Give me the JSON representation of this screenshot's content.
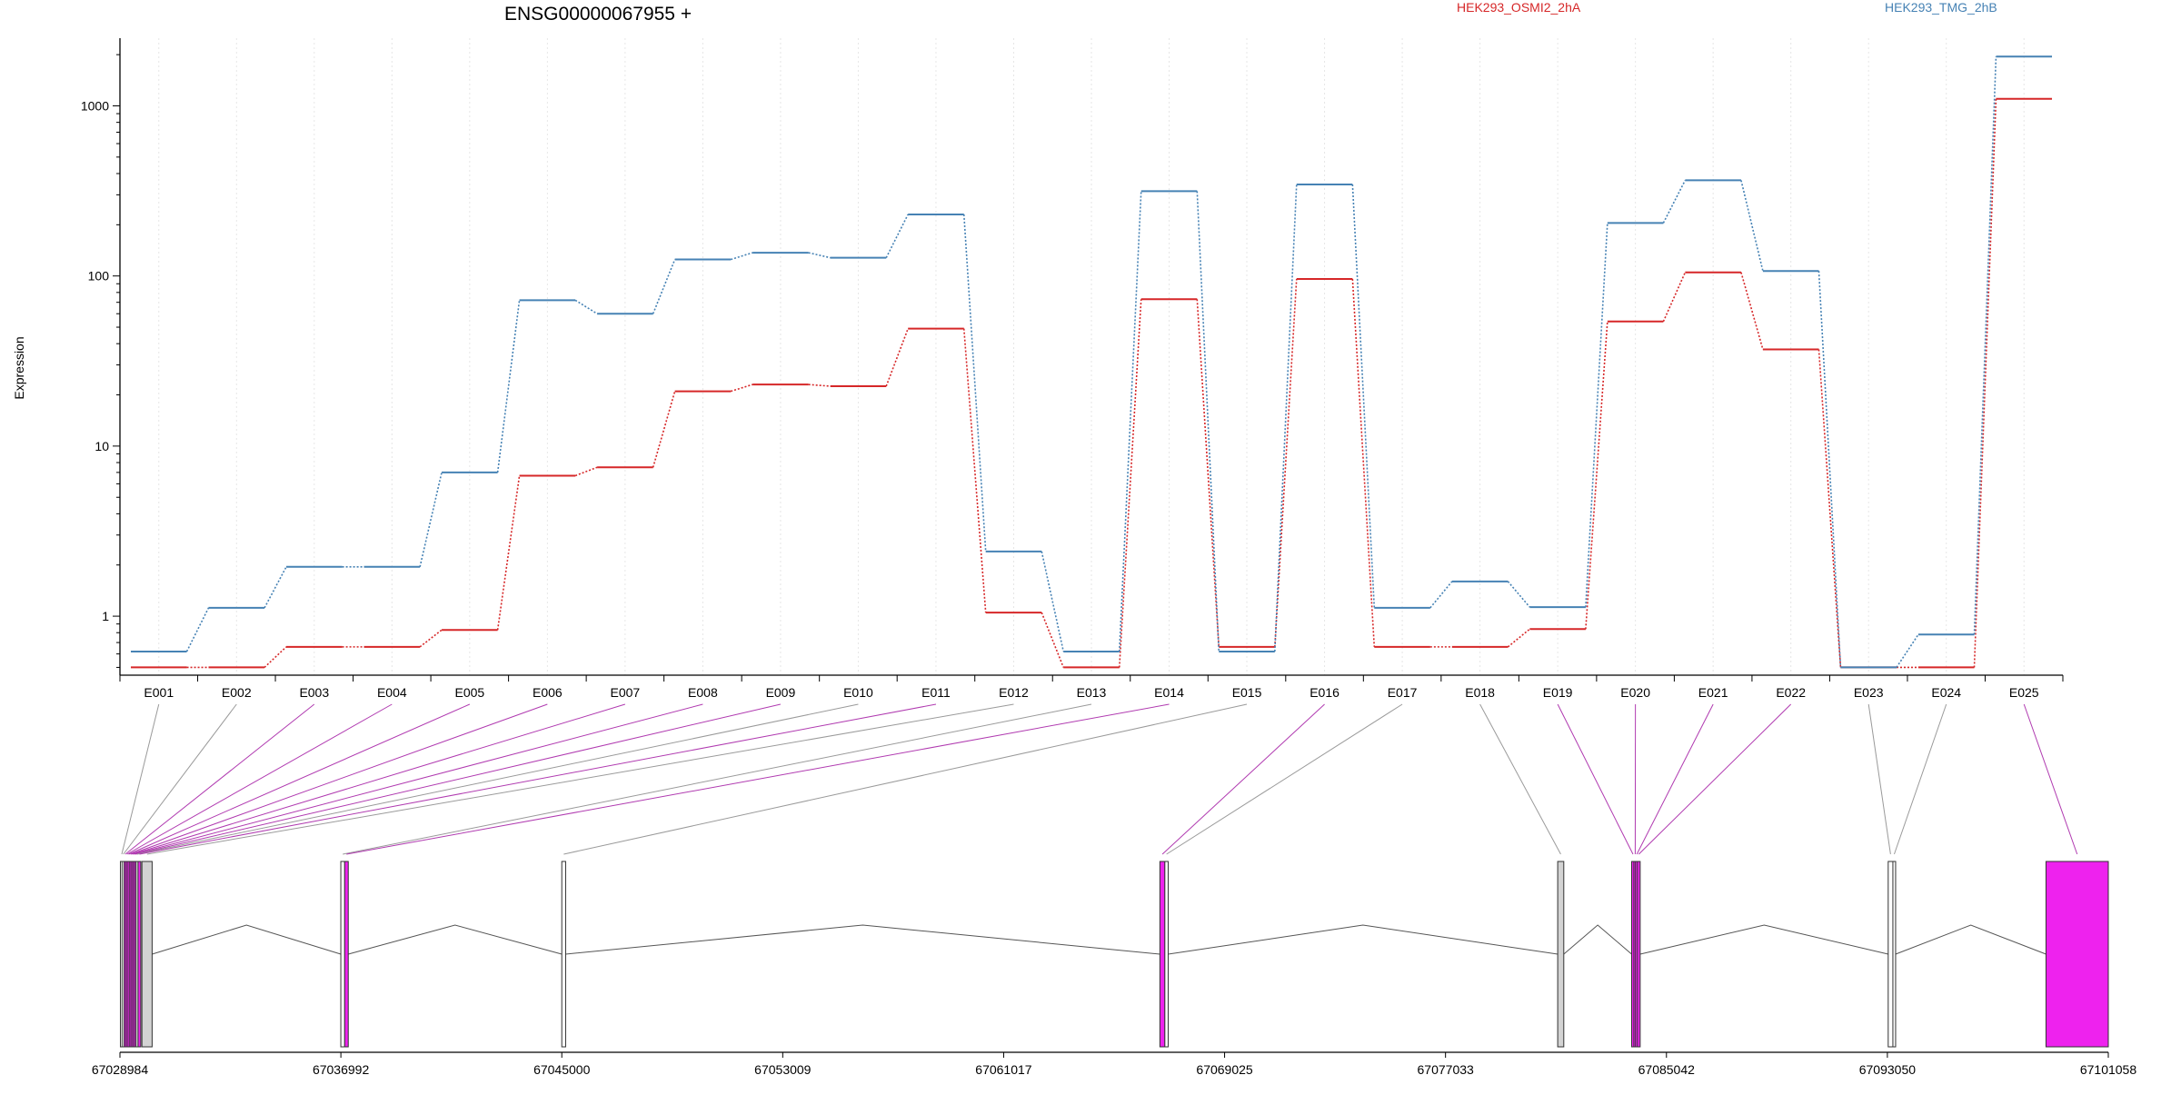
{
  "chart_data": {
    "type": "line",
    "title": "ENSG00000067955 +",
    "xlabel": "",
    "ylabel": "Expression",
    "y_scale": "log",
    "ylim": [
      0.45,
      2500
    ],
    "y_ticks": [
      "1",
      "10",
      "100",
      "1000"
    ],
    "categories": [
      "E001",
      "E002",
      "E003",
      "E004",
      "E005",
      "E006",
      "E007",
      "E008",
      "E009",
      "E010",
      "E011",
      "E012",
      "E013",
      "E014",
      "E015",
      "E016",
      "E017",
      "E018",
      "E019",
      "E020",
      "E021",
      "E022",
      "E023",
      "E024",
      "E025"
    ],
    "series": [
      {
        "name": "HEK293_OSMI2_2hA",
        "color": "#d62728",
        "values": [
          0.5,
          0.5,
          0.66,
          0.66,
          0.83,
          6.7,
          7.5,
          21,
          23,
          22.5,
          49,
          1.05,
          0.5,
          73,
          0.66,
          96,
          0.66,
          0.66,
          0.84,
          54,
          105,
          37,
          0.5,
          0.5,
          1100
        ]
      },
      {
        "name": "HEK293_TMG_2hB",
        "color": "#4682b4",
        "values": [
          0.62,
          1.12,
          1.95,
          1.95,
          7.0,
          72,
          60,
          125,
          137,
          128,
          230,
          2.4,
          0.62,
          315,
          0.62,
          345,
          1.12,
          1.6,
          1.13,
          205,
          365,
          107,
          0.5,
          0.78,
          1950
        ]
      }
    ],
    "gene_axis": {
      "tick_labels": [
        "67028984",
        "67036992",
        "67045000",
        "67053009",
        "67061017",
        "67069025",
        "67077033",
        "67085042",
        "67093050",
        "67101058"
      ],
      "start": 67028984,
      "end": 67101058
    },
    "gene_model": {
      "exons": [
        {
          "id": "E001",
          "start": 67029000,
          "end": 67029060,
          "color": "#ffffff"
        },
        {
          "id": "E002",
          "start": 67029060,
          "end": 67029130,
          "color": "#ffffff"
        },
        {
          "id": "E003",
          "start": 67029130,
          "end": 67029190,
          "color": "#ee22ee"
        },
        {
          "id": "E004",
          "start": 67029190,
          "end": 67029250,
          "color": "#ee22ee"
        },
        {
          "id": "E005",
          "start": 67029250,
          "end": 67029320,
          "color": "#ee22ee"
        },
        {
          "id": "E006",
          "start": 67029320,
          "end": 67029380,
          "color": "#ee22ee"
        },
        {
          "id": "E007",
          "start": 67029380,
          "end": 67029440,
          "color": "#ee22ee"
        },
        {
          "id": "E008",
          "start": 67029440,
          "end": 67029500,
          "color": "#ee22ee"
        },
        {
          "id": "E009",
          "start": 67029500,
          "end": 67029560,
          "color": "#ee22ee"
        },
        {
          "id": "E010",
          "start": 67029560,
          "end": 67029640,
          "color": "#d3d3d3"
        },
        {
          "id": "E011",
          "start": 67029640,
          "end": 67029720,
          "color": "#ee22ee"
        },
        {
          "id": "E012",
          "start": 67029780,
          "end": 67030150,
          "color": "#d3d3d3"
        },
        {
          "id": "E013",
          "start": 67036990,
          "end": 67037130,
          "color": "#ffffff"
        },
        {
          "id": "E014",
          "start": 67037130,
          "end": 67037260,
          "color": "#ee22ee"
        },
        {
          "id": "E015",
          "start": 67045000,
          "end": 67045140,
          "color": "#ffffff"
        },
        {
          "id": "E016",
          "start": 67066680,
          "end": 67066860,
          "color": "#ee22ee"
        },
        {
          "id": "E017",
          "start": 67066860,
          "end": 67066980,
          "color": "#ffffff"
        },
        {
          "id": "E018",
          "start": 67081100,
          "end": 67081320,
          "color": "#d3d3d3"
        },
        {
          "id": "E019",
          "start": 67083780,
          "end": 67083860,
          "color": "#ee22ee"
        },
        {
          "id": "E020",
          "start": 67083860,
          "end": 67083920,
          "color": "#ee22ee"
        },
        {
          "id": "E021",
          "start": 67083920,
          "end": 67083990,
          "color": "#ee22ee"
        },
        {
          "id": "E022",
          "start": 67083990,
          "end": 67084060,
          "color": "#ee22ee"
        },
        {
          "id": "E023",
          "start": 67093080,
          "end": 67093250,
          "color": "#ffffff"
        },
        {
          "id": "E024",
          "start": 67093250,
          "end": 67093310,
          "color": "#ffffff"
        },
        {
          "id": "E025",
          "start": 67098800,
          "end": 67101058,
          "color": "#ee22ee"
        }
      ]
    }
  }
}
